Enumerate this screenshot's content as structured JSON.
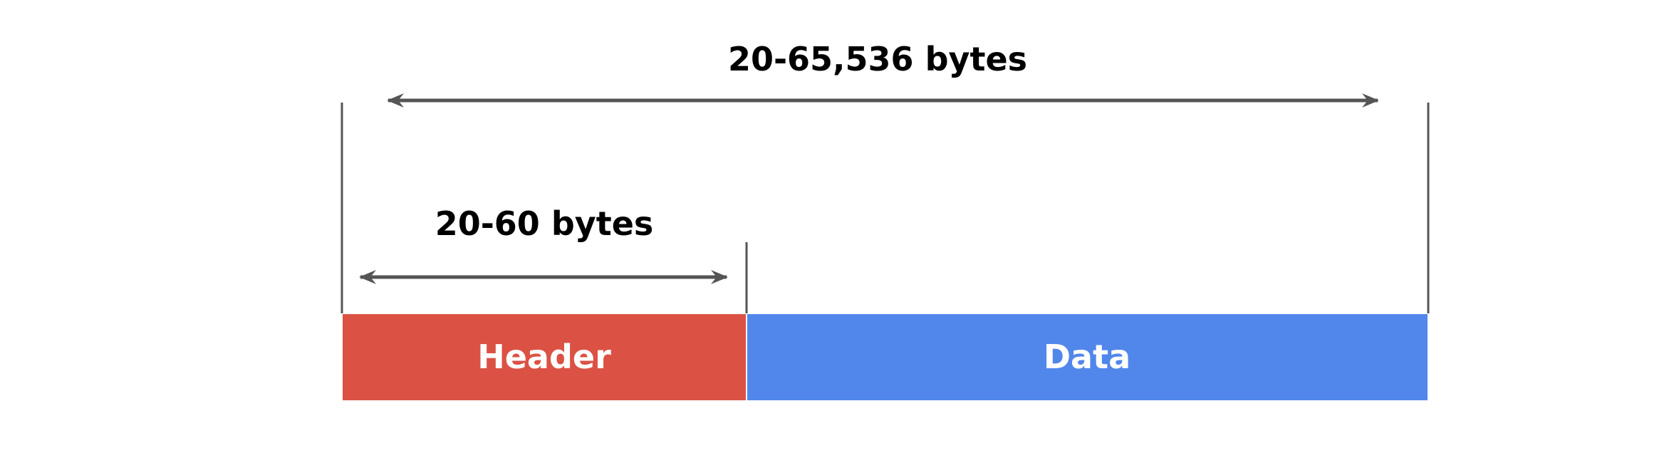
{
  "diagram": {
    "total_label": "20-65,536 bytes",
    "header_range_label": "20-60 bytes",
    "segments": [
      {
        "name": "header",
        "label": "Header",
        "color": "#DB5244"
      },
      {
        "name": "data",
        "label": "Data",
        "color": "#5187EB"
      }
    ],
    "arrow_color": "#555555",
    "boundary_line_color": "#555555"
  }
}
